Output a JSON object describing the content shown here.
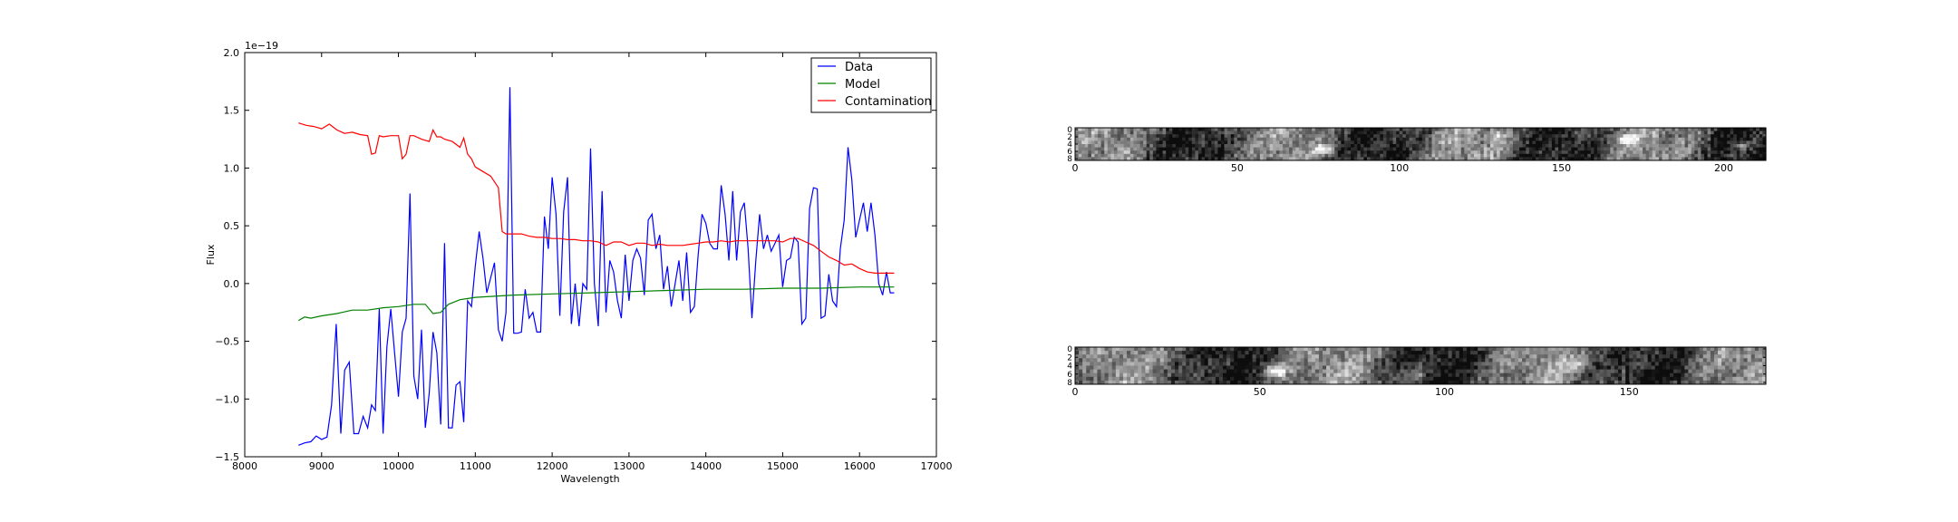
{
  "chart_data": [
    {
      "type": "line",
      "title": "",
      "xlabel": "Wavelength",
      "ylabel": "Flux",
      "y_offset_text": "1e−19",
      "xlim": [
        8000,
        17000
      ],
      "ylim": [
        -1.5,
        2.0
      ],
      "x_ticks": [
        8000,
        9000,
        10000,
        11000,
        12000,
        13000,
        14000,
        15000,
        16000,
        17000
      ],
      "y_ticks": [
        -1.5,
        -1.0,
        -0.5,
        0.0,
        0.5,
        1.0,
        1.5,
        2.0
      ],
      "x_tick_labels": [
        "8000",
        "9000",
        "10000",
        "11000",
        "12000",
        "13000",
        "14000",
        "15000",
        "16000",
        "17000"
      ],
      "y_tick_labels": [
        "−1.5",
        "−1.0",
        "−0.5",
        "0.0",
        "0.5",
        "1.0",
        "1.5",
        "2.0"
      ],
      "grid": false,
      "legend_position": "top-right",
      "series": [
        {
          "name": "Data",
          "color": "#0000ff",
          "x": [
            8700,
            8780,
            8860,
            8930,
            9000,
            9070,
            9130,
            9190,
            9250,
            9300,
            9360,
            9420,
            9480,
            9540,
            9600,
            9650,
            9700,
            9750,
            9800,
            9850,
            9900,
            9950,
            10000,
            10050,
            10100,
            10150,
            10200,
            10250,
            10300,
            10350,
            10400,
            10450,
            10500,
            10550,
            10600,
            10650,
            10700,
            10750,
            10800,
            10850,
            10900,
            10950,
            11000,
            11050,
            11100,
            11150,
            11200,
            11250,
            11300,
            11350,
            11400,
            11450,
            11500,
            11550,
            11600,
            11650,
            11700,
            11750,
            11800,
            11850,
            11900,
            11950,
            12000,
            12050,
            12100,
            12150,
            12200,
            12250,
            12300,
            12350,
            12400,
            12450,
            12500,
            12550,
            12600,
            12650,
            12700,
            12750,
            12800,
            12850,
            12900,
            12950,
            13000,
            13050,
            13100,
            13150,
            13200,
            13250,
            13300,
            13350,
            13400,
            13450,
            13500,
            13550,
            13600,
            13650,
            13700,
            13750,
            13800,
            13850,
            13900,
            13950,
            14000,
            14050,
            14100,
            14150,
            14200,
            14250,
            14300,
            14350,
            14400,
            14450,
            14500,
            14550,
            14600,
            14650,
            14700,
            14750,
            14800,
            14850,
            14900,
            14950,
            15000,
            15050,
            15100,
            15150,
            15200,
            15250,
            15300,
            15350,
            15400,
            15450,
            15500,
            15550,
            15600,
            15650,
            15700,
            15750,
            15800,
            15850,
            15900,
            15950,
            16000,
            16050,
            16100,
            16150,
            16200,
            16250,
            16300,
            16350,
            16400,
            16450
          ],
          "y": [
            -1.4,
            -1.38,
            -1.37,
            -1.32,
            -1.35,
            -1.33,
            -1.05,
            -0.35,
            -1.3,
            -0.75,
            -0.68,
            -1.3,
            -1.3,
            -1.15,
            -1.25,
            -1.05,
            -1.1,
            -0.22,
            -1.3,
            -0.55,
            -0.22,
            -0.6,
            -0.98,
            -0.42,
            -0.3,
            0.78,
            -0.8,
            -1.0,
            -0.4,
            -1.25,
            -0.95,
            -0.42,
            -0.6,
            -1.22,
            0.35,
            -1.25,
            -1.25,
            -0.88,
            -0.85,
            -1.2,
            -0.15,
            -0.2,
            0.15,
            0.45,
            0.22,
            -0.08,
            0.05,
            0.18,
            -0.4,
            -0.5,
            -0.25,
            1.7,
            -0.43,
            -0.43,
            -0.42,
            -0.05,
            -0.3,
            -0.25,
            -0.42,
            -0.42,
            0.58,
            0.3,
            0.92,
            0.6,
            -0.28,
            0.62,
            0.92,
            -0.35,
            0.0,
            -0.37,
            0.0,
            -0.05,
            1.17,
            0.0,
            -0.37,
            0.8,
            -0.25,
            0.2,
            0.1,
            -0.15,
            -0.3,
            0.25,
            -0.15,
            0.2,
            0.3,
            0.22,
            -0.1,
            0.55,
            0.6,
            0.3,
            0.42,
            -0.05,
            0.15,
            -0.2,
            0.0,
            0.2,
            -0.15,
            0.27,
            -0.25,
            -0.2,
            0.25,
            0.6,
            0.52,
            0.35,
            0.3,
            0.3,
            0.85,
            0.6,
            0.2,
            0.8,
            0.2,
            0.62,
            0.7,
            0.3,
            -0.3,
            0.2,
            0.6,
            0.3,
            0.42,
            0.28,
            0.35,
            0.42,
            -0.03,
            0.2,
            0.22,
            0.4,
            0.36,
            -0.35,
            -0.3,
            0.65,
            0.83,
            0.82,
            -0.3,
            -0.28,
            0.08,
            -0.15,
            -0.2,
            0.3,
            0.55,
            1.18,
            0.9,
            0.4,
            0.55,
            0.7,
            0.45,
            0.7,
            0.42,
            0.0,
            -0.1,
            0.1,
            -0.08,
            -0.08
          ]
        },
        {
          "name": "Model",
          "color": "#008000",
          "x": [
            8700,
            8780,
            8860,
            9000,
            9200,
            9400,
            9600,
            9800,
            10000,
            10200,
            10350,
            10450,
            10550,
            10650,
            10800,
            11000,
            11500,
            12000,
            12500,
            13000,
            13500,
            14000,
            14500,
            15000,
            15500,
            16000,
            16450
          ],
          "y": [
            -0.32,
            -0.29,
            -0.3,
            -0.28,
            -0.26,
            -0.23,
            -0.23,
            -0.21,
            -0.2,
            -0.18,
            -0.18,
            -0.26,
            -0.25,
            -0.18,
            -0.14,
            -0.12,
            -0.1,
            -0.09,
            -0.08,
            -0.07,
            -0.06,
            -0.05,
            -0.05,
            -0.04,
            -0.04,
            -0.03,
            -0.03
          ]
        },
        {
          "name": "Contamination",
          "color": "#ff0000",
          "x": [
            8700,
            8800,
            8900,
            9000,
            9100,
            9200,
            9300,
            9400,
            9500,
            9600,
            9650,
            9700,
            9750,
            9800,
            9900,
            10000,
            10050,
            10100,
            10150,
            10200,
            10300,
            10400,
            10450,
            10500,
            10550,
            10600,
            10700,
            10800,
            10850,
            10900,
            10950,
            11000,
            11100,
            11200,
            11300,
            11350,
            11400,
            11500,
            11600,
            11700,
            11800,
            11900,
            12000,
            12100,
            12200,
            12300,
            12400,
            12500,
            12600,
            12700,
            12800,
            12900,
            13000,
            13100,
            13200,
            13300,
            13400,
            13500,
            13600,
            13700,
            13800,
            13900,
            14000,
            14100,
            14200,
            14300,
            14400,
            14500,
            14600,
            14700,
            14800,
            14900,
            15000,
            15100,
            15200,
            15300,
            15400,
            15500,
            15600,
            15700,
            15800,
            15900,
            16000,
            16100,
            16200,
            16300,
            16450
          ],
          "y": [
            1.39,
            1.37,
            1.36,
            1.34,
            1.38,
            1.33,
            1.3,
            1.31,
            1.29,
            1.28,
            1.12,
            1.13,
            1.28,
            1.27,
            1.28,
            1.28,
            1.08,
            1.12,
            1.28,
            1.28,
            1.25,
            1.23,
            1.33,
            1.27,
            1.27,
            1.25,
            1.23,
            1.18,
            1.26,
            1.12,
            1.08,
            1.01,
            0.97,
            0.93,
            0.83,
            0.45,
            0.43,
            0.43,
            0.43,
            0.41,
            0.4,
            0.4,
            0.39,
            0.39,
            0.38,
            0.38,
            0.37,
            0.37,
            0.36,
            0.33,
            0.36,
            0.36,
            0.33,
            0.35,
            0.35,
            0.33,
            0.34,
            0.33,
            0.33,
            0.33,
            0.34,
            0.35,
            0.36,
            0.36,
            0.37,
            0.36,
            0.37,
            0.37,
            0.37,
            0.37,
            0.37,
            0.37,
            0.36,
            0.39,
            0.39,
            0.36,
            0.33,
            0.28,
            0.23,
            0.2,
            0.16,
            0.17,
            0.13,
            0.1,
            0.09,
            0.09,
            0.09
          ]
        }
      ]
    },
    {
      "type": "heatmap",
      "colormap": "gray",
      "xlim": [
        0,
        213
      ],
      "ylim": [
        8,
        0
      ],
      "x_ticks": [
        0,
        50,
        100,
        150,
        200
      ],
      "x_tick_labels": [
        "0",
        "50",
        "100",
        "150",
        "200"
      ],
      "y_ticks": [
        0,
        2,
        4,
        6,
        8
      ],
      "y_tick_labels": [
        "0",
        "2",
        "4",
        "6",
        "8"
      ],
      "n_rows": 10,
      "n_cols": 213
    },
    {
      "type": "heatmap",
      "colormap": "gray",
      "xlim": [
        0,
        187
      ],
      "ylim": [
        8,
        0
      ],
      "x_ticks": [
        0,
        50,
        100,
        150
      ],
      "x_tick_labels": [
        "0",
        "50",
        "100",
        "150"
      ],
      "y_ticks": [
        0,
        2,
        4,
        6,
        8
      ],
      "y_tick_labels": [
        "0",
        "2",
        "4",
        "6",
        "8"
      ],
      "n_rows": 10,
      "n_cols": 187
    }
  ]
}
